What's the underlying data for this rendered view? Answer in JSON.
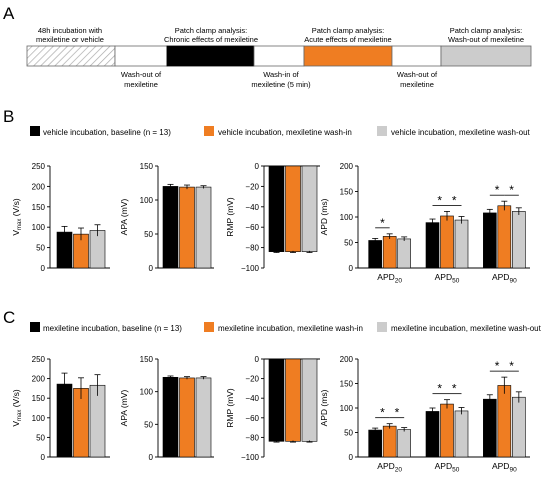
{
  "colors": {
    "black": "#000000",
    "orange": "#ef7d22",
    "gray": "#cccccc",
    "hatch": "#bbbbbb"
  },
  "panel_a": {
    "letter": "A",
    "top_labels": [
      "48h incubation with",
      "mexiletine or vehicle",
      "Patch clamp analysis:",
      "Chronic effects of mexiletine",
      "Patch clamp analysis:",
      "Acute effects of mexiletine",
      "Patch clamp analysis:",
      "Wash-out of mexiletine"
    ],
    "bottom_labels": [
      "Wash-out of",
      "mexiletine",
      "Wash-in of",
      "mexiletine (5 min)",
      "Wash-out of",
      "mexiletine"
    ]
  },
  "panel_b": {
    "letter": "B",
    "legend": [
      "vehicle incubation, baseline (n = 13)",
      "vehicle incubation, mexiletine wash-in",
      "vehicle incubation, mexiletine wash-out"
    ]
  },
  "panel_c": {
    "letter": "C",
    "legend": [
      "mexiletine incubation, baseline (n = 13)",
      "mexiletine incubation, mexiletine wash-in",
      "mexiletine incubation, mexiletine wash-out"
    ]
  },
  "chart_data": [
    {
      "type": "bar",
      "panel": "B",
      "ylabel": "Vmax (V/s)",
      "ylim": [
        0,
        250
      ],
      "yticks": [
        "0",
        "50",
        "100",
        "150",
        "200",
        "250"
      ],
      "values": [
        88,
        83,
        92
      ],
      "errors": [
        14,
        15,
        14
      ]
    },
    {
      "type": "bar",
      "panel": "B",
      "ylabel": "APA (mV)",
      "ylim": [
        0,
        150
      ],
      "yticks": [
        "0",
        "50",
        "100",
        "150"
      ],
      "values": [
        120,
        119,
        119
      ],
      "errors": [
        3,
        3,
        2
      ]
    },
    {
      "type": "bar",
      "panel": "B",
      "ylabel": "RMP (mV)",
      "ylim": [
        -100,
        0
      ],
      "yticks": [
        "0",
        "−20",
        "−40",
        "−60",
        "−80",
        "−100"
      ],
      "values": [
        -84,
        -84,
        -84
      ],
      "errors": [
        0.8,
        0.8,
        0.8
      ]
    },
    {
      "type": "bar",
      "panel": "B",
      "ylabel": "APD (ms)",
      "ylim": [
        0,
        200
      ],
      "yticks": [
        "0",
        "50",
        "100",
        "150",
        "200"
      ],
      "categories": [
        "APD20",
        "APD50",
        "APD90"
      ],
      "series": [
        {
          "values": [
            54,
            89,
            108
          ]
        },
        {
          "values": [
            62,
            102,
            122
          ]
        },
        {
          "values": [
            57,
            94,
            111
          ]
        }
      ],
      "errors": [
        [
          4,
          7,
          7
        ],
        [
          5,
          9,
          9
        ],
        [
          4,
          7,
          7
        ]
      ],
      "significance": [
        {
          "group": 0,
          "from": 0,
          "to": 1,
          "label": "*"
        },
        {
          "group": 1,
          "from": 0,
          "to": 1,
          "label": "*"
        },
        {
          "group": 1,
          "from": 1,
          "to": 2,
          "label": "*"
        },
        {
          "group": 2,
          "from": 0,
          "to": 1,
          "label": "*"
        },
        {
          "group": 2,
          "from": 1,
          "to": 2,
          "label": "*"
        }
      ]
    },
    {
      "type": "bar",
      "panel": "C",
      "ylabel": "Vmax (V/s)",
      "ylim": [
        0,
        250
      ],
      "yticks": [
        "0",
        "50",
        "100",
        "150",
        "200",
        "250"
      ],
      "values": [
        186,
        175,
        183
      ],
      "errors": [
        28,
        27,
        27
      ]
    },
    {
      "type": "bar",
      "panel": "C",
      "ylabel": "APA (mV)",
      "ylim": [
        0,
        150
      ],
      "yticks": [
        "0",
        "50",
        "100",
        "150"
      ],
      "values": [
        122,
        121,
        121
      ],
      "errors": [
        2,
        2,
        2
      ]
    },
    {
      "type": "bar",
      "panel": "C",
      "ylabel": "RMP (mV)",
      "ylim": [
        -100,
        0
      ],
      "yticks": [
        "0",
        "−20",
        "−40",
        "−60",
        "−80",
        "−100"
      ],
      "values": [
        -84,
        -84,
        -84
      ],
      "errors": [
        0.8,
        0.8,
        0.8
      ]
    },
    {
      "type": "bar",
      "panel": "C",
      "ylabel": "APD (ms)",
      "ylim": [
        0,
        200
      ],
      "yticks": [
        "0",
        "50",
        "100",
        "150",
        "200"
      ],
      "categories": [
        "APD20",
        "APD50",
        "APD90"
      ],
      "series": [
        {
          "values": [
            55,
            93,
            118
          ]
        },
        {
          "values": [
            63,
            108,
            146
          ]
        },
        {
          "values": [
            56,
            94,
            122
          ]
        }
      ],
      "errors": [
        [
          4,
          7,
          9
        ],
        [
          5,
          9,
          17
        ],
        [
          4,
          7,
          11
        ]
      ],
      "significance": [
        {
          "group": 0,
          "from": 0,
          "to": 1,
          "label": "*"
        },
        {
          "group": 0,
          "from": 1,
          "to": 2,
          "label": "*"
        },
        {
          "group": 1,
          "from": 0,
          "to": 1,
          "label": "*"
        },
        {
          "group": 1,
          "from": 1,
          "to": 2,
          "label": "*"
        },
        {
          "group": 2,
          "from": 0,
          "to": 1,
          "label": "*"
        },
        {
          "group": 2,
          "from": 1,
          "to": 2,
          "label": "*"
        }
      ]
    }
  ]
}
